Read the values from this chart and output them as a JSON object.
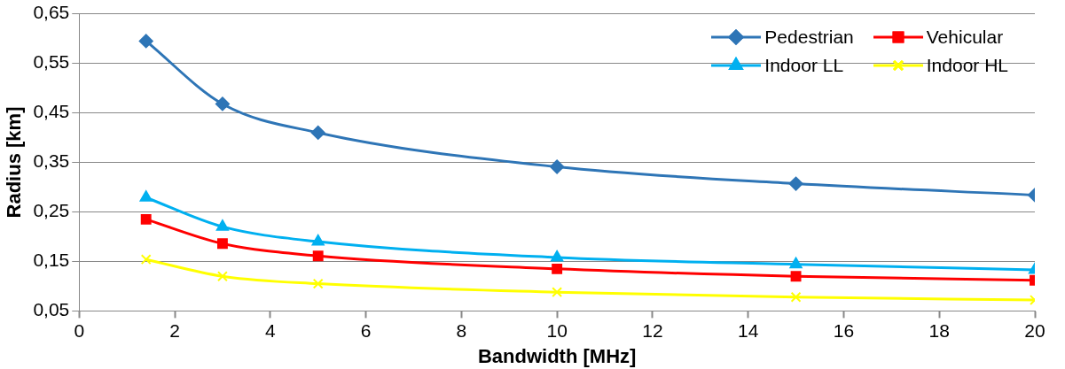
{
  "chart_data": {
    "type": "line",
    "xlabel": "Bandwidth [MHz]",
    "ylabel": "Radius [km]",
    "x": [
      1.4,
      3,
      5,
      10,
      15,
      20
    ],
    "series": [
      {
        "name": "Pedestrian",
        "color": "#2e75b6",
        "marker": "diamond",
        "values": [
          0.595,
          0.468,
          0.41,
          0.341,
          0.307,
          0.284
        ]
      },
      {
        "name": "Vehicular",
        "color": "#ff0000",
        "marker": "square",
        "values": [
          0.235,
          0.186,
          0.161,
          0.135,
          0.12,
          0.112
        ]
      },
      {
        "name": "Indoor LL",
        "color": "#00b0f0",
        "marker": "triangle",
        "values": [
          0.279,
          0.22,
          0.19,
          0.158,
          0.144,
          0.133
        ]
      },
      {
        "name": "Indoor HL",
        "color": "#ffff00",
        "marker": "cross",
        "values": [
          0.154,
          0.12,
          0.105,
          0.088,
          0.078,
          0.072
        ]
      }
    ],
    "xlim": [
      0,
      20
    ],
    "xticks": [
      0,
      2,
      4,
      6,
      8,
      10,
      12,
      14,
      16,
      18,
      20
    ],
    "ylim": [
      0.05,
      0.65
    ],
    "yticks": [
      {
        "value": 0.05,
        "label": "0,05"
      },
      {
        "value": 0.15,
        "label": "0,15"
      },
      {
        "value": 0.25,
        "label": "0,25"
      },
      {
        "value": 0.35,
        "label": "0,35"
      },
      {
        "value": 0.45,
        "label": "0,45"
      },
      {
        "value": 0.55,
        "label": "0,55"
      },
      {
        "value": 0.65,
        "label": "0,65"
      }
    ],
    "grid": "y",
    "legend": "top right"
  }
}
